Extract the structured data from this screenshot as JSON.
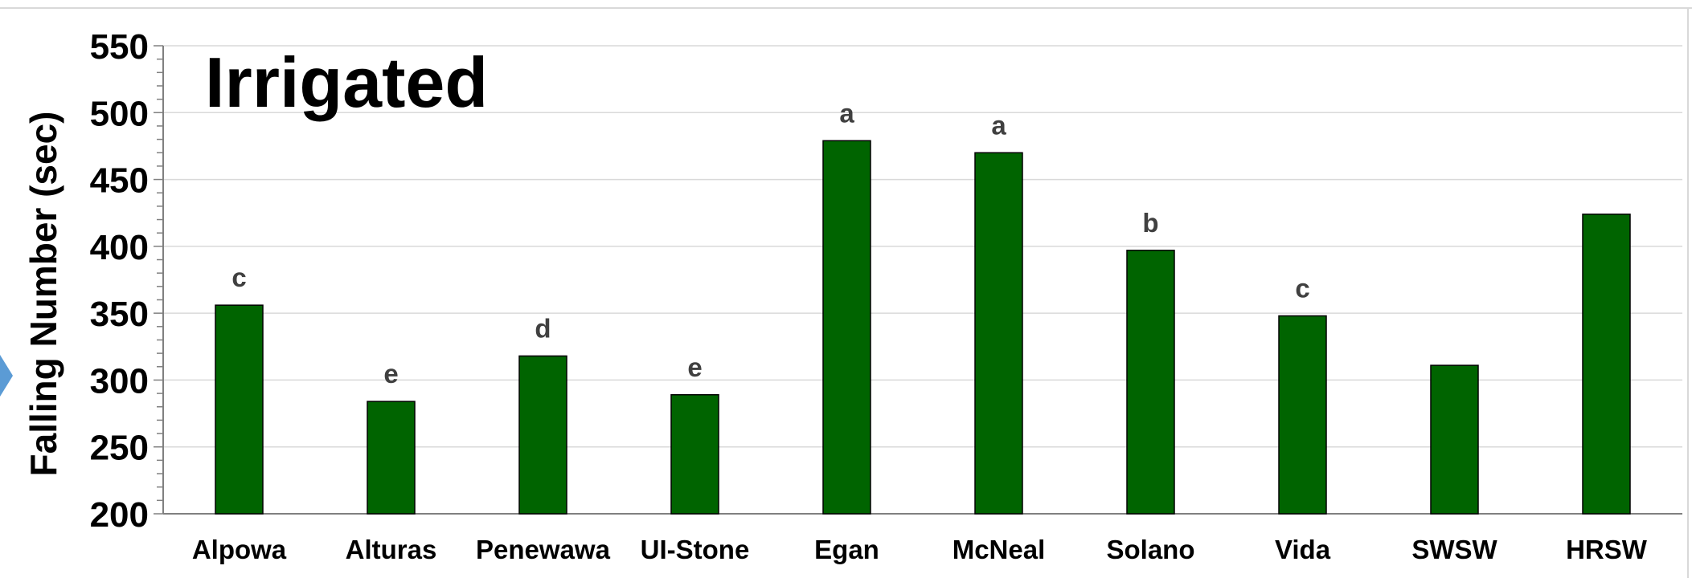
{
  "chart_data": {
    "type": "bar",
    "title": "Irrigated",
    "xlabel": "",
    "ylabel": "Falling Number (sec)",
    "ylim": [
      200,
      550
    ],
    "yticks": [
      200,
      250,
      300,
      350,
      400,
      450,
      500,
      550
    ],
    "grid": true,
    "categories": [
      "Alpowa",
      "Alturas",
      "Penewawa",
      "UI-Stone",
      "Egan",
      "McNeal",
      "Solano",
      "Vida",
      "SWSW",
      "HRSW"
    ],
    "values": [
      356,
      284,
      318,
      289,
      479,
      470,
      397,
      348,
      311,
      424
    ],
    "significance_letters": [
      "c",
      "e",
      "d",
      "e",
      "a",
      "a",
      "b",
      "c",
      "",
      ""
    ],
    "bar_color": "#006400",
    "letter_color": "#404040"
  }
}
